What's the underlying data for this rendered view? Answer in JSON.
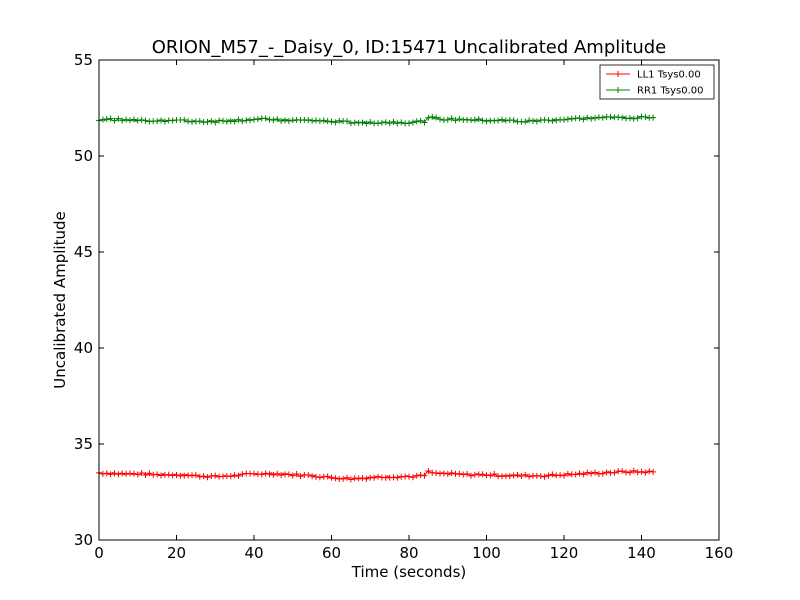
{
  "chart_data": {
    "type": "line",
    "title": "ORION_M57_-_Daisy_0, ID:15471 Uncalibrated Amplitude",
    "xlabel": "Time (seconds)",
    "ylabel": "Uncalibrated Amplitude",
    "xlim": [
      0,
      160
    ],
    "ylim": [
      30,
      55
    ],
    "xticks": [
      "0",
      "20",
      "40",
      "60",
      "80",
      "100",
      "120",
      "140",
      "160"
    ],
    "yticks": [
      "30",
      "35",
      "40",
      "45",
      "50",
      "55"
    ],
    "grid": false,
    "legend_position": "top-right",
    "marker": "plus",
    "series": [
      {
        "name": "LL1 Tsys0.00",
        "color": "#ff0000",
        "points": [
          [
            0,
            33.5
          ],
          [
            5,
            33.45
          ],
          [
            10,
            33.45
          ],
          [
            15,
            33.4
          ],
          [
            20,
            33.4
          ],
          [
            25,
            33.35
          ],
          [
            30,
            33.3
          ],
          [
            35,
            33.35
          ],
          [
            40,
            33.45
          ],
          [
            45,
            33.45
          ],
          [
            50,
            33.4
          ],
          [
            55,
            33.35
          ],
          [
            60,
            33.25
          ],
          [
            65,
            33.2
          ],
          [
            70,
            33.25
          ],
          [
            75,
            33.3
          ],
          [
            80,
            33.3
          ],
          [
            84,
            33.35
          ],
          [
            85,
            33.55
          ],
          [
            87,
            33.45
          ],
          [
            90,
            33.45
          ],
          [
            95,
            33.4
          ],
          [
            100,
            33.4
          ],
          [
            105,
            33.35
          ],
          [
            110,
            33.35
          ],
          [
            115,
            33.35
          ],
          [
            120,
            33.4
          ],
          [
            125,
            33.45
          ],
          [
            130,
            33.5
          ],
          [
            135,
            33.55
          ],
          [
            140,
            33.55
          ],
          [
            143,
            33.55
          ]
        ]
      },
      {
        "name": "RR1 Tsys0.00",
        "color": "#008000",
        "points": [
          [
            0,
            51.9
          ],
          [
            5,
            51.9
          ],
          [
            10,
            51.85
          ],
          [
            15,
            51.85
          ],
          [
            20,
            51.85
          ],
          [
            25,
            51.8
          ],
          [
            30,
            51.8
          ],
          [
            35,
            51.85
          ],
          [
            40,
            51.9
          ],
          [
            45,
            51.9
          ],
          [
            50,
            51.85
          ],
          [
            55,
            51.85
          ],
          [
            60,
            51.8
          ],
          [
            65,
            51.75
          ],
          [
            70,
            51.75
          ],
          [
            75,
            51.75
          ],
          [
            80,
            51.75
          ],
          [
            84,
            51.8
          ],
          [
            85,
            52.05
          ],
          [
            87,
            51.95
          ],
          [
            90,
            51.9
          ],
          [
            95,
            51.9
          ],
          [
            100,
            51.85
          ],
          [
            105,
            51.85
          ],
          [
            110,
            51.8
          ],
          [
            115,
            51.85
          ],
          [
            120,
            51.9
          ],
          [
            125,
            51.95
          ],
          [
            130,
            52.0
          ],
          [
            135,
            52.0
          ],
          [
            140,
            52.0
          ],
          [
            143,
            52.0
          ]
        ]
      }
    ]
  }
}
